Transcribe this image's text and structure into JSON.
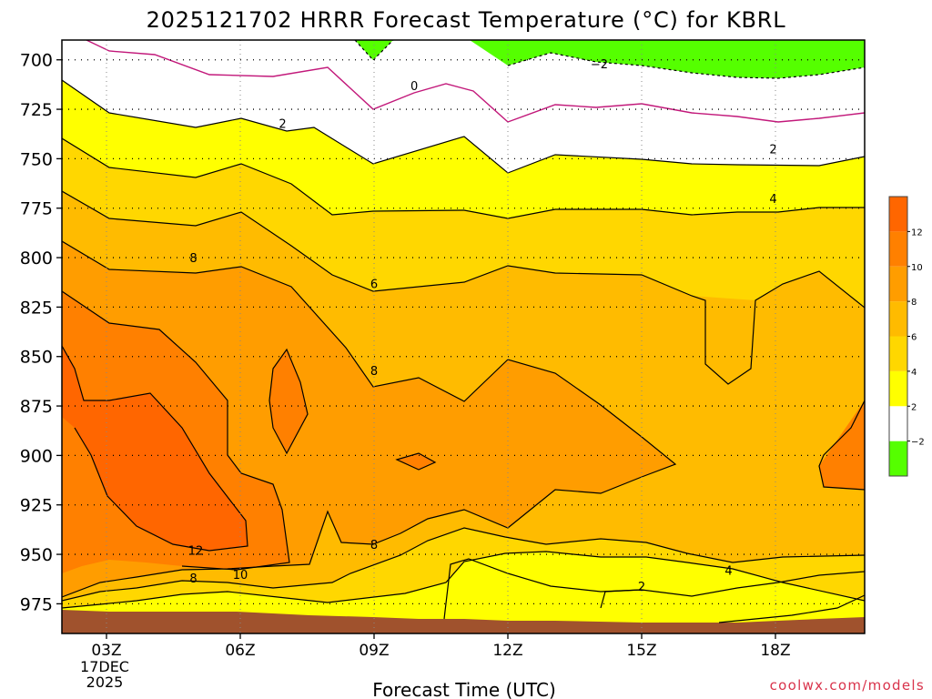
{
  "chart_data": {
    "type": "heatmap",
    "title": "2025121702 HRRR Forecast Temperature (°C) for KBRL",
    "xlabel": "Forecast Time (UTC)",
    "ylabel": "",
    "xlim": [
      2,
      20
    ],
    "ylim": [
      990,
      690
    ],
    "x_ticks": [
      {
        "value": 3,
        "label": "03Z",
        "extra": [
          "17DEC",
          "2025"
        ]
      },
      {
        "value": 6,
        "label": "06Z"
      },
      {
        "value": 9,
        "label": "09Z"
      },
      {
        "value": 12,
        "label": "12Z"
      },
      {
        "value": 15,
        "label": "15Z"
      },
      {
        "value": 18,
        "label": "18Z"
      }
    ],
    "y_ticks": [
      700,
      725,
      750,
      775,
      800,
      825,
      850,
      875,
      900,
      925,
      950,
      975
    ],
    "grid": true,
    "colorbar": {
      "levels": [
        -2,
        2,
        4,
        6,
        8,
        10,
        12
      ],
      "colors": [
        "#55ff00",
        "#ffffff",
        "#ffff00",
        "#ffd700",
        "#ffbb00",
        "#ff9d00",
        "#ff8000",
        "#ff6600"
      ],
      "labels": [
        "−2",
        "2",
        "4",
        "6",
        "8",
        "10",
        "12"
      ]
    },
    "contour_labels": [
      {
        "x": 14.05,
        "y": 702,
        "label": "−2"
      },
      {
        "x": 9.9,
        "y": 713,
        "label": "0"
      },
      {
        "x": 6.95,
        "y": 732,
        "label": "2"
      },
      {
        "x": 17.95,
        "y": 745,
        "label": "2"
      },
      {
        "x": 17.95,
        "y": 770,
        "label": "4"
      },
      {
        "x": 4.95,
        "y": 800,
        "label": "8"
      },
      {
        "x": 9.0,
        "y": 813,
        "label": "6"
      },
      {
        "x": 9.0,
        "y": 857,
        "label": "8"
      },
      {
        "x": 5.0,
        "y": 948,
        "label": "12"
      },
      {
        "x": 6.0,
        "y": 960,
        "label": "10"
      },
      {
        "x": 4.95,
        "y": 962,
        "label": "8"
      },
      {
        "x": 9.0,
        "y": 945,
        "label": "8"
      },
      {
        "x": 15.0,
        "y": 966,
        "label": "2"
      },
      {
        "x": 16.95,
        "y": 958,
        "label": "4"
      }
    ],
    "credit": "coolwx.com/models"
  }
}
